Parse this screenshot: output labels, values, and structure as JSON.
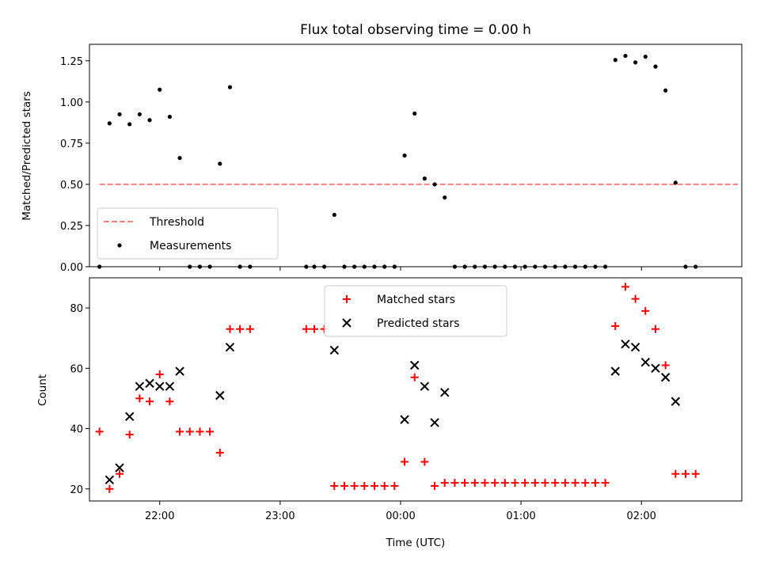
{
  "chart_data": [
    {
      "type": "scatter",
      "title": "Flux total observing time = 0.00 h",
      "xlabel": "",
      "ylabel": "Matched/Predicted stars",
      "xlim": [
        "21:25",
        "02:50"
      ],
      "ylim": [
        0,
        1.35
      ],
      "x_ticks": [
        "22:00",
        "23:00",
        "00:00",
        "01:00",
        "02:00"
      ],
      "y_ticks": [
        "0.00",
        "0.25",
        "0.50",
        "0.75",
        "1.00",
        "1.25"
      ],
      "legend_position": "lower-left",
      "series": [
        {
          "name": "Threshold",
          "style": "dashed-line",
          "color": "#ff7f7f",
          "points": [
            [
              "21:30",
              0.5
            ],
            [
              "02:48",
              0.5
            ]
          ]
        },
        {
          "name": "Measurements",
          "style": "dot",
          "color": "#000000",
          "points": [
            [
              "21:30",
              0.0
            ],
            [
              "21:35",
              0.87
            ],
            [
              "21:40",
              0.925
            ],
            [
              "21:45",
              0.865
            ],
            [
              "21:50",
              0.925
            ],
            [
              "21:55",
              0.89
            ],
            [
              "22:00",
              1.075
            ],
            [
              "22:05",
              0.91
            ],
            [
              "22:10",
              0.66
            ],
            [
              "22:15",
              0.0
            ],
            [
              "22:20",
              0.0
            ],
            [
              "22:25",
              0.0
            ],
            [
              "22:30",
              0.625
            ],
            [
              "22:35",
              1.09
            ],
            [
              "22:40",
              0.0
            ],
            [
              "22:45",
              0.0
            ],
            [
              "23:13",
              0.0
            ],
            [
              "23:17",
              0.0
            ],
            [
              "23:22",
              0.0
            ],
            [
              "23:27",
              0.315
            ],
            [
              "23:32",
              0.0
            ],
            [
              "23:37",
              0.0
            ],
            [
              "23:42",
              0.0
            ],
            [
              "23:47",
              0.0
            ],
            [
              "23:52",
              0.0
            ],
            [
              "23:57",
              0.0
            ],
            [
              "00:02",
              0.675
            ],
            [
              "00:07",
              0.93
            ],
            [
              "00:12",
              0.535
            ],
            [
              "00:17",
              0.5
            ],
            [
              "00:22",
              0.42
            ],
            [
              "00:27",
              0.0
            ],
            [
              "00:32",
              0.0
            ],
            [
              "00:37",
              0.0
            ],
            [
              "00:42",
              0.0
            ],
            [
              "00:47",
              0.0
            ],
            [
              "00:52",
              0.0
            ],
            [
              "00:57",
              0.0
            ],
            [
              "01:02",
              0.0
            ],
            [
              "01:07",
              0.0
            ],
            [
              "01:12",
              0.0
            ],
            [
              "01:17",
              0.0
            ],
            [
              "01:22",
              0.0
            ],
            [
              "01:27",
              0.0
            ],
            [
              "01:32",
              0.0
            ],
            [
              "01:37",
              0.0
            ],
            [
              "01:42",
              0.0
            ],
            [
              "01:47",
              1.255
            ],
            [
              "01:52",
              1.28
            ],
            [
              "01:57",
              1.24
            ],
            [
              "02:02",
              1.275
            ],
            [
              "02:07",
              1.215
            ],
            [
              "02:12",
              1.07
            ],
            [
              "02:17",
              0.51
            ],
            [
              "02:22",
              0.0
            ],
            [
              "02:27",
              0.0
            ]
          ]
        }
      ]
    },
    {
      "type": "scatter",
      "title": "",
      "xlabel": "Time (UTC)",
      "ylabel": "Count",
      "xlim": [
        "21:25",
        "02:50"
      ],
      "ylim": [
        16,
        90
      ],
      "x_ticks": [
        "22:00",
        "23:00",
        "00:00",
        "01:00",
        "02:00"
      ],
      "y_ticks": [
        "20",
        "40",
        "60",
        "80"
      ],
      "legend_position": "upper-center",
      "series": [
        {
          "name": "Matched stars",
          "style": "plus",
          "color": "#ff0000",
          "points": [
            [
              "21:30",
              39
            ],
            [
              "21:35",
              20
            ],
            [
              "21:40",
              25
            ],
            [
              "21:45",
              38
            ],
            [
              "21:50",
              50
            ],
            [
              "21:55",
              49
            ],
            [
              "22:00",
              58
            ],
            [
              "22:05",
              49
            ],
            [
              "22:10",
              39
            ],
            [
              "22:15",
              39
            ],
            [
              "22:20",
              39
            ],
            [
              "22:25",
              39
            ],
            [
              "22:30",
              32
            ],
            [
              "22:35",
              73
            ],
            [
              "22:40",
              73
            ],
            [
              "22:45",
              73
            ],
            [
              "23:13",
              73
            ],
            [
              "23:17",
              73
            ],
            [
              "23:22",
              73
            ],
            [
              "23:27",
              21
            ],
            [
              "23:32",
              21
            ],
            [
              "23:37",
              21
            ],
            [
              "23:42",
              21
            ],
            [
              "23:47",
              21
            ],
            [
              "23:52",
              21
            ],
            [
              "23:57",
              21
            ],
            [
              "00:02",
              29
            ],
            [
              "00:07",
              57
            ],
            [
              "00:12",
              29
            ],
            [
              "00:17",
              21
            ],
            [
              "00:22",
              22
            ],
            [
              "00:27",
              22
            ],
            [
              "00:32",
              22
            ],
            [
              "00:37",
              22
            ],
            [
              "00:42",
              22
            ],
            [
              "00:47",
              22
            ],
            [
              "00:52",
              22
            ],
            [
              "00:57",
              22
            ],
            [
              "01:02",
              22
            ],
            [
              "01:07",
              22
            ],
            [
              "01:12",
              22
            ],
            [
              "01:17",
              22
            ],
            [
              "01:22",
              22
            ],
            [
              "01:27",
              22
            ],
            [
              "01:32",
              22
            ],
            [
              "01:37",
              22
            ],
            [
              "01:42",
              22
            ],
            [
              "01:47",
              74
            ],
            [
              "01:52",
              87
            ],
            [
              "01:57",
              83
            ],
            [
              "02:02",
              79
            ],
            [
              "02:07",
              73
            ],
            [
              "02:12",
              61
            ],
            [
              "02:17",
              25
            ],
            [
              "02:22",
              25
            ],
            [
              "02:27",
              25
            ]
          ]
        },
        {
          "name": "Predicted stars",
          "style": "cross",
          "color": "#000000",
          "points": [
            [
              "21:35",
              23
            ],
            [
              "21:40",
              27
            ],
            [
              "21:45",
              44
            ],
            [
              "21:50",
              54
            ],
            [
              "21:55",
              55
            ],
            [
              "22:00",
              54
            ],
            [
              "22:05",
              54
            ],
            [
              "22:10",
              59
            ],
            [
              "22:30",
              51
            ],
            [
              "22:35",
              67
            ],
            [
              "23:27",
              66
            ],
            [
              "00:02",
              43
            ],
            [
              "00:07",
              61
            ],
            [
              "00:12",
              54
            ],
            [
              "00:17",
              42
            ],
            [
              "00:22",
              52
            ],
            [
              "01:47",
              59
            ],
            [
              "01:52",
              68
            ],
            [
              "01:57",
              67
            ],
            [
              "02:02",
              62
            ],
            [
              "02:07",
              60
            ],
            [
              "02:12",
              57
            ],
            [
              "02:17",
              49
            ]
          ]
        }
      ]
    }
  ]
}
